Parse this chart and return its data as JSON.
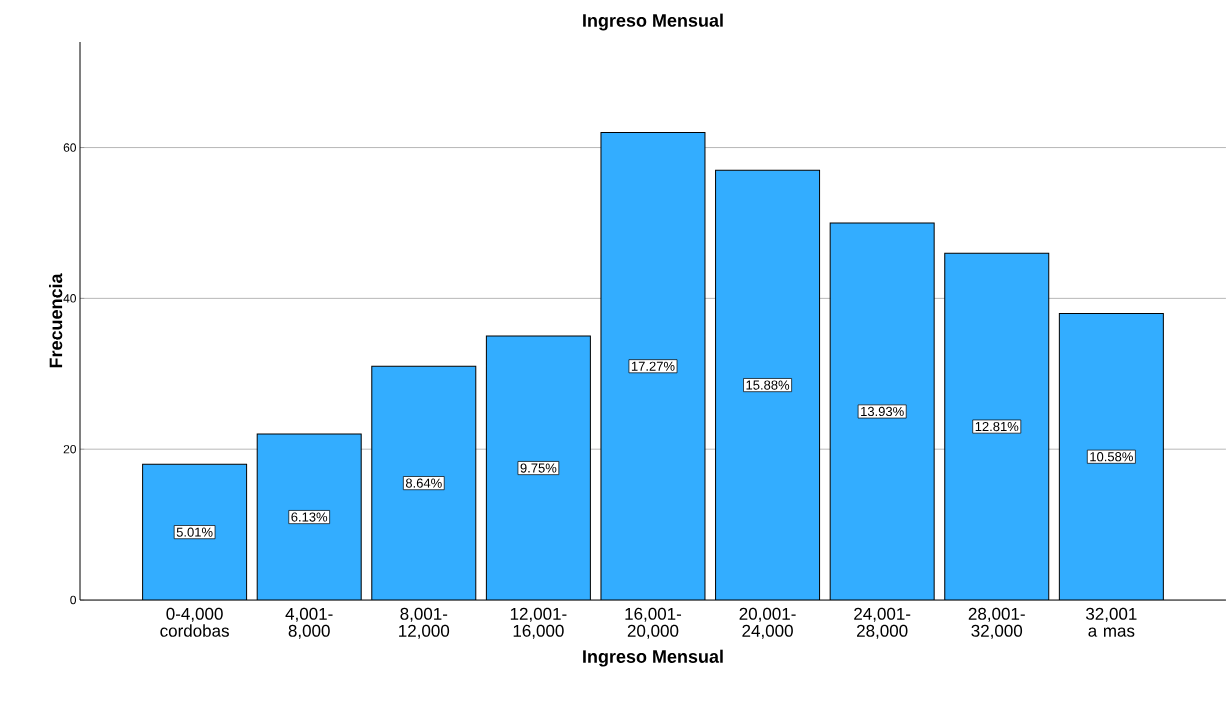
{
  "chart_data": {
    "type": "bar",
    "title": "Ingreso Mensual",
    "xlabel": "Ingreso Mensual",
    "ylabel": "Frecuencia",
    "categories": [
      "0-4,000 cordobas",
      "4,001-8,000",
      "8,001-12,000",
      "12,001-16,000",
      "16,001-20,000",
      "20,001-24,000",
      "24,001-28,000",
      "28,001-32,000",
      "32,001 a mas"
    ],
    "values": [
      18,
      22,
      31,
      35,
      62,
      57,
      50,
      46,
      38
    ],
    "annotations": [
      "5.01%",
      "6.13%",
      "8.64%",
      "9.75%",
      "17.27%",
      "15.88%",
      "13.93%",
      "12.81%",
      "10.58%"
    ],
    "color": "#33adff",
    "ylim": [
      0,
      74
    ],
    "yticks": [
      0,
      20,
      40,
      60
    ],
    "grid": "y"
  }
}
